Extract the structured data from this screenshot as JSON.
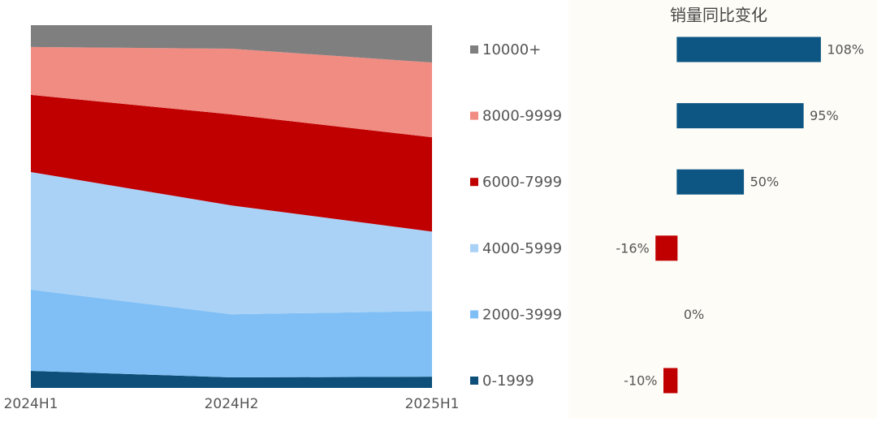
{
  "chart_data": [
    {
      "type": "stacked_area_100",
      "x": [
        "2024H1",
        "2024H2",
        "2025H1"
      ],
      "ylim": [
        0,
        100
      ],
      "series": [
        {
          "name": "10000+",
          "color": "#7f7f7f",
          "values": [
            6.0,
            6.5,
            10.3
          ]
        },
        {
          "name": "8000-9999",
          "color": "#f08c82",
          "values": [
            13.2,
            18.1,
            20.6
          ]
        },
        {
          "name": "6000-7999",
          "color": "#c00000",
          "values": [
            21.3,
            25.1,
            26.0
          ]
        },
        {
          "name": "4000-5999",
          "color": "#aad2f6",
          "values": [
            32.4,
            30.0,
            21.9
          ]
        },
        {
          "name": "2000-3999",
          "color": "#80bff5",
          "values": [
            22.4,
            17.4,
            18.1
          ]
        },
        {
          "name": "0-1999",
          "color": "#0d4f78",
          "values": [
            4.7,
            2.9,
            3.1
          ]
        }
      ]
    },
    {
      "type": "bar",
      "title": "销量同比变化",
      "values": [
        108,
        95,
        50,
        -16,
        0,
        -10
      ],
      "value_labels": [
        "108%",
        "95%",
        "50%",
        "-16%",
        "0%",
        "-10%"
      ],
      "colors": [
        "#0d5583",
        "#0d5583",
        "#0d5583",
        "#c00000",
        "#0d5583",
        "#c00000"
      ],
      "xlim": [
        -25,
        120
      ]
    }
  ]
}
